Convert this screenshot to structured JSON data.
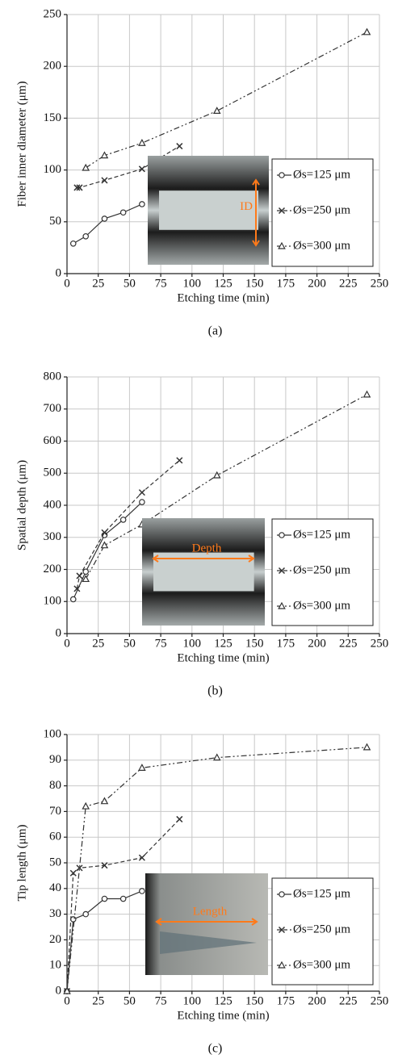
{
  "chart_data": [
    {
      "type": "line",
      "caption": "(a)",
      "x_label": "Etching time (min)",
      "y_label": "Fiber inner diameter (μm)",
      "xlim": [
        0,
        250
      ],
      "xticks": [
        0,
        25,
        50,
        75,
        100,
        125,
        150,
        175,
        200,
        225,
        250
      ],
      "ylim": [
        0,
        250
      ],
      "yticks": [
        0,
        50,
        100,
        150,
        200,
        250
      ],
      "grid": true,
      "legend": "lower right",
      "inset_label": "ID",
      "series": [
        {
          "name": "Øs=125 μm",
          "color": "#333333",
          "marker": "circle",
          "dash": "solid",
          "x": [
            5,
            15,
            30,
            45,
            60
          ],
          "values": [
            29,
            36,
            53,
            59,
            67
          ]
        },
        {
          "name": "Øs=250 μm",
          "color": "#333333",
          "marker": "x",
          "dash": "dashed",
          "x": [
            8,
            10,
            30,
            60,
            90
          ],
          "values": [
            83,
            83,
            90,
            101,
            123
          ]
        },
        {
          "name": "Øs=300 μm",
          "color": "#333333",
          "marker": "triangle",
          "dash": "dashdotdot",
          "x": [
            15,
            30,
            60,
            120,
            240
          ],
          "values": [
            102,
            114,
            126,
            157,
            233
          ]
        }
      ]
    },
    {
      "type": "line",
      "caption": "(b)",
      "x_label": "Etching time (min)",
      "y_label": "Spatial depth (μm)",
      "xlim": [
        0,
        250
      ],
      "xticks": [
        0,
        25,
        50,
        75,
        100,
        125,
        150,
        175,
        200,
        225,
        250
      ],
      "ylim": [
        0,
        800
      ],
      "yticks": [
        0,
        100,
        200,
        300,
        400,
        500,
        600,
        700,
        800
      ],
      "grid": true,
      "legend": "lower right",
      "inset_label": "Depth",
      "series": [
        {
          "name": "Øs=125 μm",
          "color": "#333333",
          "marker": "circle",
          "dash": "solid",
          "x": [
            5,
            15,
            30,
            45,
            60
          ],
          "values": [
            107,
            193,
            307,
            355,
            410
          ]
        },
        {
          "name": "Øs=250 μm",
          "color": "#333333",
          "marker": "x",
          "dash": "dashed",
          "x": [
            8,
            10,
            30,
            60,
            90
          ],
          "values": [
            140,
            180,
            315,
            440,
            540
          ]
        },
        {
          "name": "Øs=300 μm",
          "color": "#333333",
          "marker": "triangle",
          "dash": "dashdotdot",
          "x": [
            15,
            30,
            60,
            120,
            240
          ],
          "values": [
            170,
            275,
            340,
            493,
            745
          ]
        }
      ]
    },
    {
      "type": "line",
      "caption": "(c)",
      "x_label": "Etching time (min)",
      "y_label": "Tip length (μm)",
      "xlim": [
        0,
        250
      ],
      "xticks": [
        0,
        25,
        50,
        75,
        100,
        125,
        150,
        175,
        200,
        225,
        250
      ],
      "ylim": [
        0,
        100
      ],
      "yticks": [
        0,
        10,
        20,
        30,
        40,
        50,
        60,
        70,
        80,
        90,
        100
      ],
      "grid": true,
      "legend": "lower right",
      "inset_label": "Length",
      "series": [
        {
          "name": "Øs=125 μm",
          "color": "#333333",
          "marker": "circle",
          "dash": "solid",
          "x": [
            0,
            5,
            15,
            30,
            45,
            60
          ],
          "values": [
            0,
            28,
            30,
            36,
            36,
            39
          ]
        },
        {
          "name": "Øs=250 μm",
          "color": "#333333",
          "marker": "x",
          "dash": "dashed",
          "x": [
            0,
            5,
            10,
            30,
            60,
            90
          ],
          "values": [
            0,
            46,
            48,
            49,
            52,
            67
          ]
        },
        {
          "name": "Øs=300 μm",
          "color": "#333333",
          "marker": "triangle",
          "dash": "dashdotdot",
          "x": [
            0,
            15,
            30,
            60,
            120,
            240
          ],
          "values": [
            0,
            72,
            74,
            87,
            91,
            95
          ]
        }
      ]
    }
  ]
}
